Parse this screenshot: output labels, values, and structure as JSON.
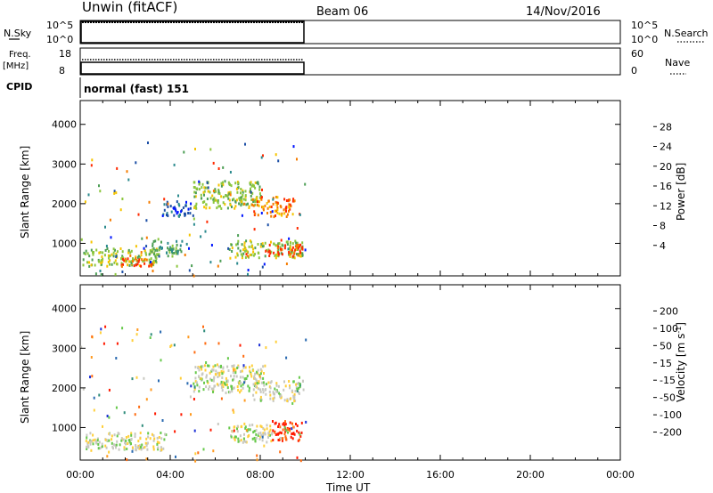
{
  "header": {
    "station": "Unwin (fitACF)",
    "beam": "Beam 06",
    "date": "14/Nov/2016"
  },
  "strip_labels": {
    "nsky": "N.Sky",
    "nsky_ticks": [
      "10^5",
      "10^0"
    ],
    "nsearch": "N.Search",
    "nsearch_ticks": [
      "10^5",
      "10^0"
    ],
    "freq_line1": "Freq.",
    "freq_line2": "[MHz]",
    "freq_ticks": [
      "18",
      "8"
    ],
    "nave": "Nave",
    "nave_ticks": [
      "60",
      "0"
    ],
    "cpid": "CPID",
    "cpid_value": "normal (fast) 151"
  },
  "chart_data": [
    {
      "type": "heatmap",
      "name": "power",
      "xlabel": "",
      "ylabel": "Slant Range [km]",
      "y_ticks": [
        1000,
        2000,
        3000,
        4000
      ],
      "xlim_hours": [
        0,
        24
      ],
      "data_end_hour": 10,
      "colorbar_label": "Power [dB]",
      "colorbar_ticks": [
        "4",
        "8",
        "12",
        "16",
        "20",
        "24",
        "28"
      ],
      "colors": [
        "#0015ff",
        "#1d4fa6",
        "#2b8a8e",
        "#4c9e55",
        "#8cc63e",
        "#f5c400",
        "#f57c00",
        "#ff2a00"
      ],
      "echo_regions": [
        {
          "x_hours": [
            0.1,
            3.5
          ],
          "range_km": [
            450,
            900
          ],
          "color_idx": 4
        },
        {
          "x_hours": [
            1.8,
            3.2
          ],
          "range_km": [
            450,
            650
          ],
          "color_idx": 7
        },
        {
          "x_hours": [
            3.0,
            4.5
          ],
          "range_km": [
            700,
            1100
          ],
          "color_idx": 3
        },
        {
          "x_hours": [
            5.0,
            8.0
          ],
          "range_km": [
            1900,
            2600
          ],
          "color_idx": 4
        },
        {
          "x_hours": [
            7.6,
            9.5
          ],
          "range_km": [
            1700,
            2200
          ],
          "color_idx": 6
        },
        {
          "x_hours": [
            6.6,
            9.9
          ],
          "range_km": [
            650,
            1100
          ],
          "color_idx": 4
        },
        {
          "x_hours": [
            8.2,
            9.9
          ],
          "range_km": [
            700,
            1000
          ],
          "color_idx": 7
        },
        {
          "x_hours": [
            3.6,
            5.0
          ],
          "range_km": [
            1700,
            2100
          ],
          "color_idx": 1
        }
      ]
    },
    {
      "type": "heatmap",
      "name": "velocity",
      "xlabel": "Time UT",
      "ylabel": "Slant Range [km]",
      "y_ticks": [
        1000,
        2000,
        3000,
        4000
      ],
      "x_ticks": [
        "00:00",
        "04:00",
        "08:00",
        "12:00",
        "16:00",
        "20:00",
        "00:00"
      ],
      "xlim_hours": [
        0,
        24
      ],
      "data_end_hour": 10,
      "colorbar_label": "Velocity [m s^-1]",
      "colorbar_ticks": [
        "200",
        "100",
        "50",
        "15",
        "-15",
        "-50",
        "-100",
        "-200"
      ],
      "colors": [
        "#1c2fd6",
        "#2a6ab0",
        "#2f8c7b",
        "#66c94a",
        "#c8c8c0",
        "#ffcf3a",
        "#ff9a20",
        "#ff6b10",
        "#ff1a00"
      ],
      "echo_regions": [
        {
          "x_hours": [
            0.1,
            3.8
          ],
          "range_km": [
            450,
            900
          ],
          "color_idx": 4
        },
        {
          "x_hours": [
            5.0,
            8.2
          ],
          "range_km": [
            1900,
            2600
          ],
          "color_idx": 4
        },
        {
          "x_hours": [
            7.6,
            9.7
          ],
          "range_km": [
            1700,
            2200
          ],
          "color_idx": 4
        },
        {
          "x_hours": [
            6.6,
            8.6
          ],
          "range_km": [
            650,
            1100
          ],
          "color_idx": 4
        },
        {
          "x_hours": [
            8.5,
            9.9
          ],
          "range_km": [
            700,
            1200
          ],
          "color_idx": 8
        },
        {
          "x_hours": [
            9.6,
            9.95
          ],
          "range_km": [
            1900,
            2300
          ],
          "color_idx": 3
        }
      ]
    }
  ]
}
